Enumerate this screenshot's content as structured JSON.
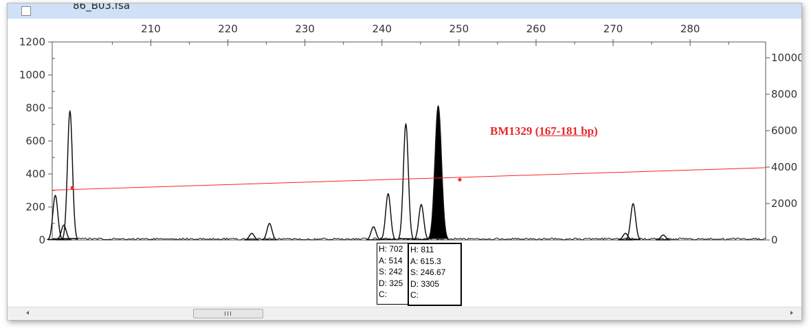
{
  "window": {
    "title": "86_B03.fsa"
  },
  "chart_data": {
    "type": "electropherogram",
    "xlim": [
      197.2,
      289.8
    ],
    "xticks": [
      210,
      220,
      230,
      240,
      250,
      260,
      270,
      280
    ],
    "ylim": [
      0,
      1200
    ],
    "yticks": [
      0,
      200,
      400,
      600,
      800,
      1000,
      1200
    ],
    "y2lim": [
      0,
      10868
    ],
    "y2ticks": [
      0,
      2000,
      4000,
      6000,
      8000,
      10000
    ],
    "peaks": {
      "x": [
        197.6,
        198.7,
        199.5,
        223.1,
        225.4,
        238.9,
        240.8,
        243.1,
        245.1,
        247.3,
        271.6,
        272.6,
        276.5
      ],
      "values": [
        270,
        90,
        780,
        40,
        100,
        80,
        280,
        702,
        215,
        811,
        40,
        220,
        30
      ],
      "filled": [
        false,
        false,
        false,
        false,
        false,
        false,
        false,
        false,
        false,
        true,
        false,
        false,
        false
      ],
      "color": "#111111",
      "fill_color": "#000000"
    },
    "sizing_line": {
      "x": [
        197.2,
        289.8
      ],
      "values": [
        302,
        438
      ],
      "color": "#ff2020",
      "points_x": [
        199.8,
        250.1
      ],
      "points_values": [
        316,
        365
      ]
    },
    "annotation": {
      "label": "BM1329 (",
      "range": "167-181 bp",
      "close": ")",
      "color": "#e8262a"
    },
    "tooltips": [
      {
        "lines": [
          "H: 702",
          "A: 514",
          "S: 242",
          "D: 325",
          "C:"
        ]
      },
      {
        "lines": [
          "H: 811",
          "A: 615.3",
          "S: 246.67",
          "D: 3305",
          "C:"
        ]
      }
    ]
  }
}
